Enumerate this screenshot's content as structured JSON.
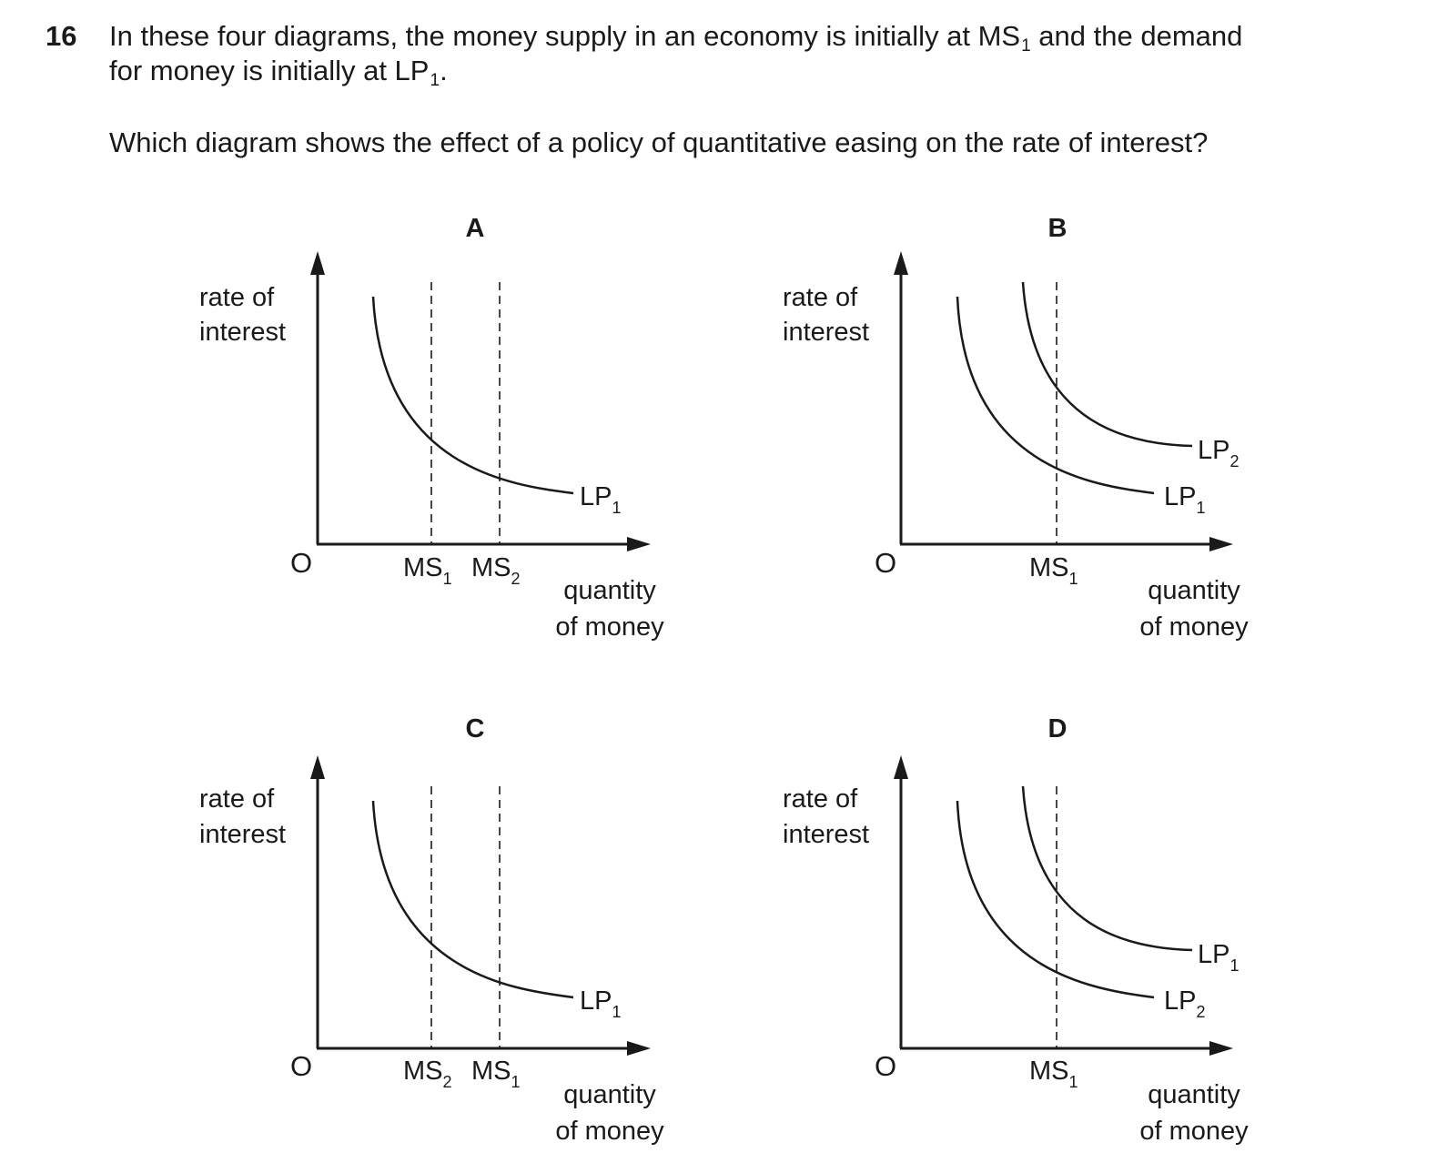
{
  "question": {
    "number": "16",
    "line1_a": "In these four diagrams, the money supply in an economy is initially at MS",
    "line1_sub": "1",
    "line1_b": " and the demand",
    "line2_a": "for money is initially at LP",
    "line2_sub": "1",
    "line2_b": ".",
    "line3": "Which diagram shows the effect of a policy of quantitative easing on the rate of interest?"
  },
  "axis": {
    "y_label_line1": "rate of",
    "y_label_line2": "interest",
    "origin": "O",
    "x_label_line1": "quantity",
    "x_label_line2": "of money"
  },
  "diagrams": {
    "a": {
      "letter": "A",
      "ms_left": {
        "base": "MS",
        "sub": "1"
      },
      "ms_right": {
        "base": "MS",
        "sub": "2"
      },
      "lp": {
        "base": "LP",
        "sub": "1"
      }
    },
    "b": {
      "letter": "B",
      "ms": {
        "base": "MS",
        "sub": "1"
      },
      "lp_upper": {
        "base": "LP",
        "sub": "2"
      },
      "lp_lower": {
        "base": "LP",
        "sub": "1"
      }
    },
    "c": {
      "letter": "C",
      "ms_left": {
        "base": "MS",
        "sub": "2"
      },
      "ms_right": {
        "base": "MS",
        "sub": "1"
      },
      "lp": {
        "base": "LP",
        "sub": "1"
      }
    },
    "d": {
      "letter": "D",
      "ms": {
        "base": "MS",
        "sub": "1"
      },
      "lp_upper": {
        "base": "LP",
        "sub": "1"
      },
      "lp_lower": {
        "base": "LP",
        "sub": "2"
      }
    }
  }
}
